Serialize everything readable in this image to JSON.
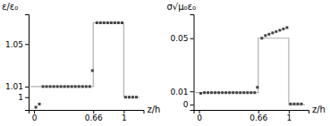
{
  "chart_data": [
    {
      "type": "line",
      "xlabel": "z/h",
      "ylabel": "ε/ε₀",
      "series": [
        {
          "type": "line",
          "color": "#b0b0b0",
          "x": [
            -0.04,
            0.66,
            0.66,
            1.0,
            1.0,
            1.18
          ],
          "values": [
            1.01,
            1.01,
            1.07,
            1.07,
            1.0,
            1.0
          ]
        },
        {
          "type": "scatter",
          "color": "#444444",
          "marker": "square",
          "x": [
            0.02,
            0.06,
            0.1,
            0.14,
            0.18,
            0.22,
            0.26,
            0.3,
            0.34,
            0.38,
            0.42,
            0.46,
            0.5,
            0.54,
            0.58,
            0.62,
            0.65,
            0.7,
            0.74,
            0.78,
            0.82,
            0.86,
            0.9,
            0.94,
            0.98,
            1.02,
            1.06,
            1.1,
            1.14
          ],
          "values": [
            0.9905,
            0.9935,
            1.01,
            1.01,
            1.01,
            1.01,
            1.01,
            1.01,
            1.01,
            1.01,
            1.01,
            1.01,
            1.01,
            1.01,
            1.01,
            1.01,
            1.025,
            1.07,
            1.07,
            1.07,
            1.07,
            1.07,
            1.07,
            1.07,
            1.07,
            1.0,
            1.0,
            1.0,
            1.0
          ]
        }
      ],
      "xlim": [
        -0.06,
        1.22
      ],
      "ylim": [
        0.988,
        1.078
      ],
      "xticks": [
        0,
        0.66,
        1
      ],
      "yticks": [
        1,
        1.01,
        1.05
      ]
    },
    {
      "type": "line",
      "xlabel": "z/h",
      "ylabel": "σ√μ₀ε₀",
      "series": [
        {
          "type": "line",
          "color": "#b0b0b0",
          "x": [
            -0.04,
            0.66,
            0.66,
            1.0,
            1.0,
            1.18
          ],
          "values": [
            0.009,
            0.009,
            0.05,
            0.05,
            0.0,
            0.0
          ]
        },
        {
          "type": "scatter",
          "color": "#444444",
          "marker": "square",
          "x": [
            0.02,
            0.06,
            0.1,
            0.14,
            0.18,
            0.22,
            0.26,
            0.3,
            0.34,
            0.38,
            0.42,
            0.46,
            0.5,
            0.54,
            0.58,
            0.62,
            0.65,
            0.7,
            0.74,
            0.78,
            0.82,
            0.86,
            0.9,
            0.94,
            0.98,
            1.02,
            1.06,
            1.1,
            1.14
          ],
          "values": [
            0.0085,
            0.009,
            0.009,
            0.009,
            0.009,
            0.009,
            0.009,
            0.009,
            0.009,
            0.009,
            0.009,
            0.009,
            0.009,
            0.009,
            0.009,
            0.009,
            0.013,
            0.05,
            0.052,
            0.053,
            0.054,
            0.055,
            0.056,
            0.057,
            0.058,
            0.0005,
            0.0005,
            0.0005,
            0.0005
          ]
        }
      ],
      "xlim": [
        -0.06,
        1.22
      ],
      "ylim": [
        -0.004,
        0.068
      ],
      "xticks": [
        0,
        0.66,
        1
      ],
      "yticks": [
        0,
        0.01,
        0.05
      ]
    }
  ]
}
